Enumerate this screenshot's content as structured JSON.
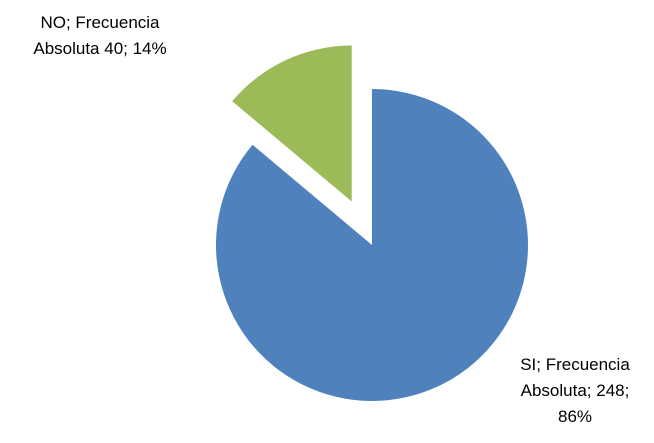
{
  "chart_data": {
    "type": "pie",
    "categories": [
      "SI",
      "NO"
    ],
    "series": [
      {
        "name": "Frecuencia Absoluta",
        "values": [
          248,
          40
        ],
        "value_labels": [
          "SI; Frecuencia Absoluta; 248; 86%",
          "NO; Frecuencia Absoluta 40; 14%"
        ],
        "colors": [
          "#4f81bd",
          "#9bbb59"
        ]
      }
    ],
    "legend": false
  }
}
